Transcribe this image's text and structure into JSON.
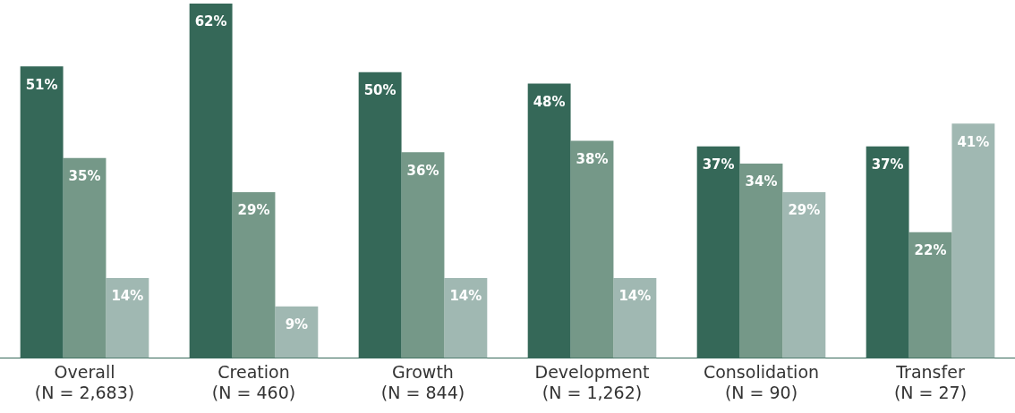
{
  "chart_data": {
    "type": "bar",
    "categories": [
      "Overall\n(N = 2,683)",
      "Creation\n(N = 460)",
      "Growth\n(N = 844)",
      "Development\n(N = 1,262)",
      "Consolidation\n(N = 90)",
      "Transfer\n(N = 27)"
    ],
    "series": [
      {
        "color": "#356858",
        "values": [
          51,
          62,
          50,
          48,
          37,
          37
        ],
        "value_labels": [
          "51%",
          "62%",
          "50%",
          "48%",
          "37%",
          "37%"
        ]
      },
      {
        "color": "#759888",
        "values": [
          35,
          29,
          36,
          38,
          34,
          22
        ],
        "value_labels": [
          "35%",
          "29%",
          "36%",
          "38%",
          "34%",
          "22%"
        ]
      },
      {
        "color": "#a0b8b2",
        "values": [
          14,
          9,
          14,
          14,
          29,
          41
        ],
        "value_labels": [
          "14%",
          "9%",
          "14%",
          "14%",
          "29%",
          "41%"
        ]
      }
    ],
    "grid": false,
    "legend": false
  }
}
